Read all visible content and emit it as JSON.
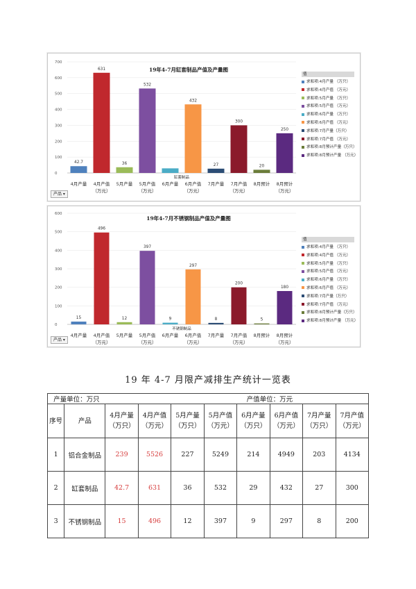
{
  "charts": [
    {
      "title": "19年4-7月缸套制品产值及产量图",
      "axis_ticks": [
        "0",
        "100",
        "200",
        "300",
        "400",
        "500",
        "600",
        "700"
      ],
      "ylim": [
        0,
        700
      ],
      "group_label": "缸套制品",
      "filter_label": "产品",
      "legend_header": "值",
      "legend": [
        "求和项:4月产量 （万只）",
        "求和项:4月产值 （万元）",
        "求和项:5月产量 （万只）",
        "求和项:5月产值 （万元）",
        "求和项:6月产量 （万只）",
        "求和项:6月产值 （万元）",
        "求和项:7月产量（万只）",
        "求和项:7月产值 （万元）",
        "求和项:8月预计产量（万只）",
        "求和项:8月预计产量 （万元）"
      ],
      "categories": [
        [
          "4月产量"
        ],
        [
          "4月产值",
          "（万元）"
        ],
        [
          "5月产量"
        ],
        [
          "5月产值",
          "（万元）"
        ],
        [
          "6月产量"
        ],
        [
          "6月产值",
          "（万元）"
        ],
        [
          "7月产量"
        ],
        [
          "7月产值",
          "（万元）"
        ],
        [
          "8月预计"
        ],
        [
          "8月预计",
          "（万元）"
        ]
      ],
      "values": [
        42.7,
        631,
        36,
        532,
        29,
        432,
        27,
        300,
        20,
        250
      ],
      "value_labels": [
        "42.7",
        "631",
        "36",
        "532",
        "",
        "432",
        "27",
        "300",
        "20",
        "250"
      ]
    },
    {
      "title": "19年4-7月不锈钢制品产值及产量图",
      "axis_ticks": [
        "0",
        "100",
        "200",
        "300",
        "400",
        "500",
        "600"
      ],
      "ylim": [
        0,
        600
      ],
      "group_label": "不锈钢制品",
      "filter_label": "产品",
      "legend_header": "值",
      "legend": [
        "求和项:4月产量 （万只）",
        "求和项:4月产值 （万元）",
        "求和项:5月产量 （万只）",
        "求和项:5月产值 （万元）",
        "求和项:6月产量 （万只）",
        "求和项:6月产值 （万元）",
        "求和项:7月产量（万只）",
        "求和项:7月产值 （万元）",
        "求和项:8月预计产量（万只）",
        "求和项:8月预计产量 （万元）"
      ],
      "categories": [
        [
          "4月产量"
        ],
        [
          "4月产值",
          "（万元）"
        ],
        [
          "5月产量"
        ],
        [
          "5月产值",
          "（万元）"
        ],
        [
          "6月产量"
        ],
        [
          "6月产值",
          "（万元）"
        ],
        [
          "7月产量"
        ],
        [
          "7月产值",
          "（万元）"
        ],
        [
          "8月预计"
        ],
        [
          "8月预计",
          "（万元）"
        ]
      ],
      "values": [
        15,
        496,
        12,
        397,
        9,
        297,
        8,
        200,
        5,
        180
      ],
      "value_labels": [
        "15",
        "496",
        "12",
        "397",
        "9",
        "297",
        "8",
        "200",
        "5",
        "180"
      ]
    }
  ],
  "bar_colors": [
    "#4f81bd",
    "#c0282d",
    "#9bbb59",
    "#7d4fa0",
    "#4bacc6",
    "#f79646",
    "#2c4d75",
    "#8b1a2b",
    "#6b7d3a",
    "#5b2a80"
  ],
  "table_title": "19 年 4-7 月限产减排生产统计一览表",
  "table": {
    "unit_left": "产量单位：万只",
    "unit_right": "产值单位：万元",
    "headers": [
      [
        "序号"
      ],
      [
        "产品"
      ],
      [
        "4月产量",
        "（万只）"
      ],
      [
        "4月产值",
        "（万元）"
      ],
      [
        "5月产量",
        "（万只）"
      ],
      [
        "5月产值",
        "（万元）"
      ],
      [
        "6月产量",
        "（万只）"
      ],
      [
        "6月产值",
        "（万元）"
      ],
      [
        "7月产量",
        "（万只）"
      ],
      [
        "7月产值",
        "（万元）"
      ]
    ],
    "rows": [
      [
        "1",
        "铝合金制品",
        "239",
        "5526",
        "227",
        "5249",
        "214",
        "4949",
        "203",
        "4134"
      ],
      [
        "2",
        "缸套制品",
        "42.7",
        "631",
        "36",
        "532",
        "29",
        "432",
        "27",
        "300"
      ],
      [
        "3",
        "不锈钢制品",
        "15",
        "496",
        "12",
        "397",
        "9",
        "297",
        "8",
        "200"
      ]
    ]
  }
}
